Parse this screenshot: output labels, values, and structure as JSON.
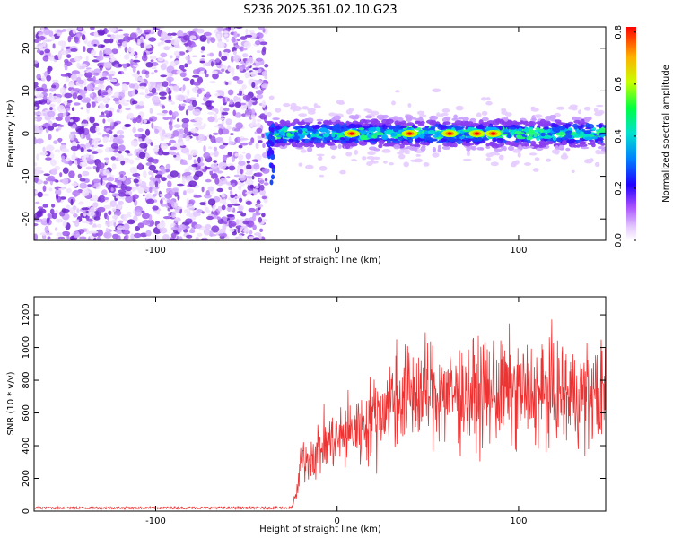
{
  "title": "S236.2025.361.02.10.G23",
  "colors": {
    "spectrogram_dots": "#9a55e8",
    "snr_line": "#ee3333",
    "axis": "#000000",
    "background": "#ffffff"
  },
  "chart_data": [
    {
      "type": "heatmap",
      "name": "spectrogram",
      "xlabel": "Height of straight line (km)",
      "ylabel": "Frequency (Hz)",
      "xlim": [
        -167,
        148
      ],
      "ylim": [
        -25,
        25
      ],
      "xticks": [
        -100,
        0,
        100
      ],
      "yticks": [
        -20,
        -10,
        0,
        10,
        20
      ],
      "xtick_labels": [
        "-100",
        "0",
        "100"
      ],
      "ytick_labels": [
        "-20",
        "-10",
        "0",
        "10",
        "20"
      ],
      "noise_region_km": [
        -167,
        -39
      ],
      "signal_onset_km": -38,
      "signal_center_hz": 0,
      "signal_bandwidth_hz": [
        -4,
        4
      ],
      "peak_amplitude_km": [
        86,
        77,
        62,
        8,
        40
      ],
      "colorbar": {
        "label": "Normalized spectral amplitude",
        "range": [
          0,
          0.82
        ],
        "ticks": [
          0.0,
          0.2,
          0.4,
          0.6,
          0.8
        ],
        "tick_labels": [
          "0.0",
          "0.2",
          "0.4",
          "0.6",
          "0.8"
        ],
        "colormap": [
          "#ffffff",
          "#d9b7ff",
          "#8a2be2",
          "#0000ff",
          "#00c8ff",
          "#00ff88",
          "#ccff00",
          "#ffcc00",
          "#ff0000"
        ]
      }
    },
    {
      "type": "line",
      "name": "snr",
      "xlabel": "Height of straight line (km)",
      "ylabel": "SNR (10 * v/v)",
      "xlim": [
        -167,
        148
      ],
      "ylim": [
        0,
        1310
      ],
      "xticks": [
        -100,
        0,
        100
      ],
      "yticks": [
        0,
        200,
        400,
        600,
        800,
        1000,
        1200
      ],
      "xtick_labels": [
        "-100",
        "0",
        "100"
      ],
      "ytick_labels": [
        "0",
        "200",
        "400",
        "600",
        "800",
        "1000",
        "1200"
      ],
      "series": [
        {
          "name": "SNR",
          "x": [
            -167,
            -150,
            -120,
            -90,
            -60,
            -40,
            -30,
            -25,
            -22,
            -20,
            -15,
            -10,
            -5,
            0,
            5,
            10,
            15,
            20,
            25,
            30,
            35,
            40,
            50,
            60,
            70,
            80,
            90,
            100,
            110,
            120,
            130,
            140,
            148
          ],
          "y": [
            20,
            20,
            20,
            20,
            20,
            20,
            20,
            20,
            120,
            300,
            330,
            380,
            420,
            440,
            470,
            500,
            530,
            570,
            620,
            680,
            700,
            710,
            720,
            720,
            710,
            720,
            730,
            720,
            710,
            720,
            700,
            720,
            710
          ]
        }
      ]
    }
  ]
}
